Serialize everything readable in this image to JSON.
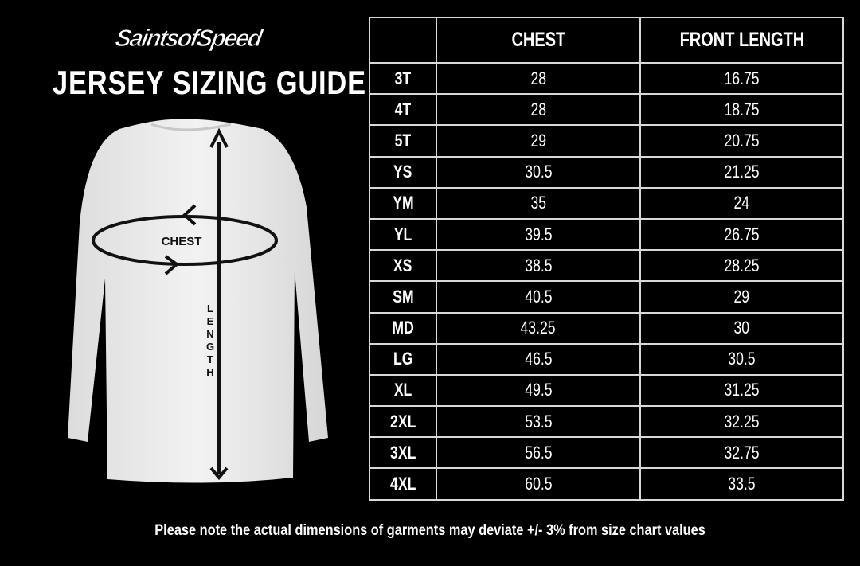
{
  "brand": {
    "logo_text": "SaintsofSpeed"
  },
  "title": "JERSEY SIZING GUIDE",
  "diagram": {
    "chest_label": "CHEST",
    "length_letters": [
      "L",
      "E",
      "N",
      "G",
      "T",
      "H"
    ]
  },
  "table": {
    "headers": [
      "",
      "CHEST",
      "FRONT LENGTH"
    ],
    "rows": [
      {
        "size": "3T",
        "chest": "28",
        "front_length": "16.75"
      },
      {
        "size": "4T",
        "chest": "28",
        "front_length": "18.75"
      },
      {
        "size": "5T",
        "chest": "29",
        "front_length": "20.75"
      },
      {
        "size": "YS",
        "chest": "30.5",
        "front_length": "21.25"
      },
      {
        "size": "YM",
        "chest": "35",
        "front_length": "24"
      },
      {
        "size": "YL",
        "chest": "39.5",
        "front_length": "26.75"
      },
      {
        "size": "XS",
        "chest": "38.5",
        "front_length": "28.25"
      },
      {
        "size": "SM",
        "chest": "40.5",
        "front_length": "29"
      },
      {
        "size": "MD",
        "chest": "43.25",
        "front_length": "30"
      },
      {
        "size": "LG",
        "chest": "46.5",
        "front_length": "30.5"
      },
      {
        "size": "XL",
        "chest": "49.5",
        "front_length": "31.25"
      },
      {
        "size": "2XL",
        "chest": "53.5",
        "front_length": "32.25"
      },
      {
        "size": "3XL",
        "chest": "56.5",
        "front_length": "32.75"
      },
      {
        "size": "4XL",
        "chest": "60.5",
        "front_length": "33.5"
      }
    ]
  },
  "footnote": "Please note the actual dimensions of garments may deviate +/- 3% from size chart values"
}
